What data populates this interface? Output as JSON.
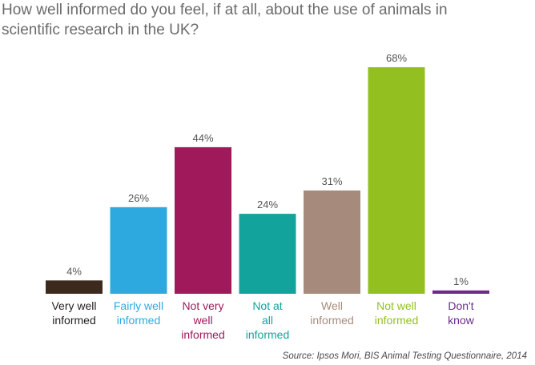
{
  "title": "How well informed do you feel, if at all, about the use of animals in scientific research in the UK?",
  "source": "Source: Ipsos Mori, BIS Animal Testing Questionnaire, 2014",
  "chart_data": {
    "type": "bar",
    "title": "How well informed do you feel, if at all, about the use of animals in scientific research in the UK?",
    "xlabel": "",
    "ylabel": "",
    "ylim": [
      0,
      70
    ],
    "grid": false,
    "legend": "none",
    "bars": [
      {
        "label": [
          "Very well",
          "informed"
        ],
        "value": 4,
        "value_label": "4%",
        "color": "#3c2a1e",
        "label_color": "#231f20"
      },
      {
        "label": [
          "Fairly well",
          "informed"
        ],
        "value": 26,
        "value_label": "26%",
        "color": "#2ea9e0",
        "label_color": "#2ea9e0"
      },
      {
        "label": [
          "Not very",
          "well",
          "informed"
        ],
        "value": 44,
        "value_label": "44%",
        "color": "#a0195b",
        "label_color": "#a0195b"
      },
      {
        "label": [
          "Not at",
          "all",
          "informed"
        ],
        "value": 24,
        "value_label": "24%",
        "color": "#12a39c",
        "label_color": "#12a39c"
      },
      {
        "label": [
          "Well",
          "informed"
        ],
        "value": 31,
        "value_label": "31%",
        "color": "#a68b7c",
        "label_color": "#a68b7c"
      },
      {
        "label": [
          "Not well",
          "informed"
        ],
        "value": 68,
        "value_label": "68%",
        "color": "#93c020",
        "label_color": "#93c020"
      },
      {
        "label": [
          "Don't",
          "know"
        ],
        "value": 1,
        "value_label": "1%",
        "color": "#6a2c8c",
        "label_color": "#6a2c8c"
      }
    ]
  }
}
